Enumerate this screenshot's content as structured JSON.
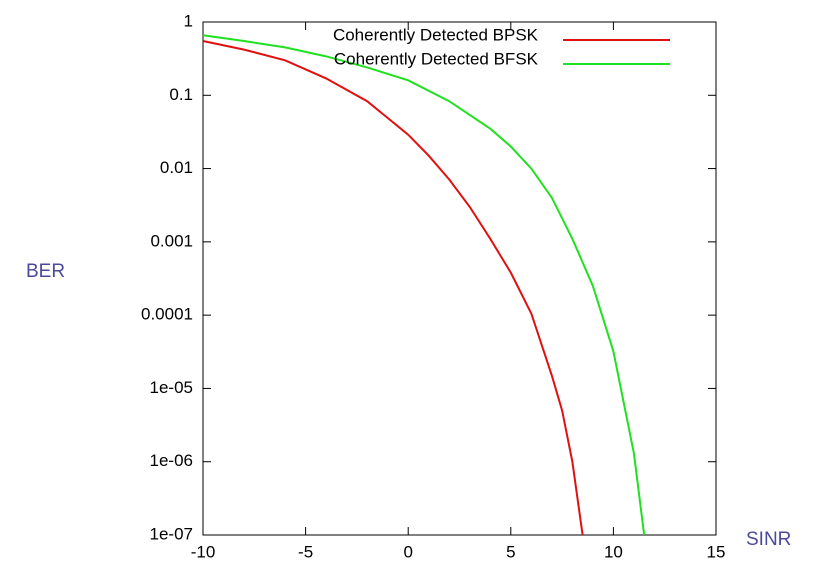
{
  "chart_data": {
    "type": "line",
    "xlabel": "SINR",
    "ylabel": "BER",
    "xlim": [
      -10,
      15
    ],
    "xticks": [
      -10,
      -5,
      0,
      5,
      10,
      15
    ],
    "ylim": [
      1e-07,
      1
    ],
    "log_y": true,
    "yticks": [
      1,
      0.1,
      0.01,
      0.001,
      0.0001,
      {
        "value": 1e-05,
        "label": "1e-05"
      },
      {
        "value": 1e-06,
        "label": "1e-06"
      },
      {
        "value": 1e-07,
        "label": "1e-07"
      }
    ],
    "legend": "top right",
    "series": [
      {
        "name": "Coherently Detected BPSK",
        "color": "#e01010",
        "x": [
          -10,
          -8,
          -6,
          -4,
          -2,
          0,
          1,
          2,
          3,
          4,
          5,
          6,
          7,
          7.5,
          8,
          8.5
        ],
        "values": [
          0.55,
          0.42,
          0.3,
          0.17,
          0.083,
          0.029,
          0.015,
          0.0071,
          0.003,
          0.0011,
          0.00038,
          0.000105,
          1.5e-05,
          5e-06,
          1e-06,
          1e-07
        ]
      },
      {
        "name": "Coherently Detected BFSK",
        "color": "#20e020",
        "x": [
          -10,
          -8,
          -6,
          -4,
          -2,
          0,
          2,
          4,
          5,
          6,
          7,
          8,
          9,
          10,
          11,
          11.5
        ],
        "values": [
          0.66,
          0.55,
          0.45,
          0.34,
          0.24,
          0.16,
          0.083,
          0.035,
          0.02,
          0.01,
          0.004,
          0.0011,
          0.00025,
          3.2e-05,
          1.3e-06,
          1e-07
        ]
      }
    ]
  }
}
